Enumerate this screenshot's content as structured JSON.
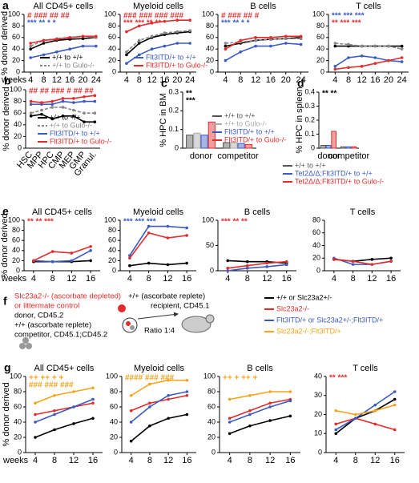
{
  "schematic": {
    "label": "f",
    "donor_line1": "Slc23a2-/- (ascorbate depleted)",
    "donor_line2": "or littermate control",
    "donor_line3": "donor, CD45.2",
    "competitor_line1": "+/+ (ascorbate replete)",
    "competitor_line2": "competitor, CD45.1;CD45.2",
    "recipient_line1": "+/+ (ascorbate replete)",
    "recipient_line2": "recipient, CD45.1",
    "ratio": "Ratio 1:4"
  },
  "chart_data": [
    {
      "type": "line",
      "label": "a",
      "title": "All CD45+ cells",
      "ylabel": "% donor derived",
      "xlabel": "weeks",
      "x": [
        4,
        8,
        12,
        16,
        20,
        24
      ],
      "xlim": [
        2,
        26
      ],
      "xticks": [
        4,
        8,
        12,
        16,
        20,
        24
      ],
      "ylim": [
        0,
        100
      ],
      "yticks": [
        0,
        20,
        40,
        60,
        80,
        100
      ],
      "legend": "lower right",
      "series": [
        {
          "name": "+/+ to +/+",
          "color": "#000000",
          "values": [
            40,
            50,
            55,
            57,
            58,
            60
          ]
        },
        {
          "name": "+/+ to Gulo-/-",
          "color": "#888888",
          "style": "dashed",
          "values": [
            45,
            55,
            58,
            60,
            62,
            60
          ]
        },
        {
          "color": "#3b5bc4",
          "values": [
            25,
            30,
            35,
            40,
            45,
            45
          ]
        },
        {
          "color": "#e32b2b",
          "values": [
            50,
            55,
            57,
            60,
            62,
            62
          ]
        }
      ],
      "annotations": [
        {
          "text": "# ### ## ##",
          "color": "#e32b2b"
        },
        {
          "text": "*** ** * *",
          "color": "#3b5bc4"
        }
      ]
    },
    {
      "type": "line",
      "title": "Myeloid cells",
      "x": [
        4,
        8,
        12,
        16,
        20,
        24
      ],
      "xlim": [
        2,
        26
      ],
      "xticks": [
        4,
        8,
        12,
        16,
        20,
        24
      ],
      "ylim": [
        0,
        100
      ],
      "yticks": [
        0,
        20,
        40,
        60,
        80,
        100
      ],
      "legend": "lower right",
      "series": [
        {
          "color": "#000000",
          "values": [
            30,
            50,
            60,
            65,
            68,
            70
          ]
        },
        {
          "color": "#888888",
          "style": "dashed",
          "values": [
            35,
            55,
            62,
            68,
            70,
            72
          ]
        },
        {
          "name": "Flt3ITD/+ to +/+",
          "color": "#3b5bc4",
          "values": [
            15,
            30,
            40,
            45,
            50,
            50
          ]
        },
        {
          "name": "Flt3ITD/+ to Gulo-/-",
          "color": "#e32b2b",
          "values": [
            70,
            80,
            85,
            88,
            90,
            90
          ]
        }
      ],
      "annotations": [
        {
          "text": "### ### ### ###",
          "color": "#e32b2b"
        },
        {
          "text": "*** *** ** **",
          "color": "#e32b2b"
        }
      ]
    },
    {
      "type": "line",
      "title": "B cells",
      "x": [
        4,
        8,
        12,
        16,
        20,
        24
      ],
      "xlim": [
        2,
        26
      ],
      "xticks": [
        4,
        8,
        12,
        16,
        20,
        24
      ],
      "ylim": [
        0,
        100
      ],
      "yticks": [
        0,
        20,
        40,
        60,
        80,
        100
      ],
      "series": [
        {
          "color": "#000000",
          "values": [
            45,
            50,
            55,
            57,
            58,
            60
          ]
        },
        {
          "color": "#888888",
          "style": "dashed",
          "values": [
            50,
            52,
            55,
            57,
            58,
            58
          ]
        },
        {
          "color": "#3b5bc4",
          "values": [
            20,
            35,
            45,
            45,
            50,
            48
          ]
        },
        {
          "color": "#e32b2b",
          "values": [
            40,
            55,
            60,
            60,
            62,
            62
          ]
        }
      ],
      "annotations": [
        {
          "text": "# ### ## #",
          "color": "#e32b2b"
        },
        {
          "text": "*** ** * *",
          "color": "#3b5bc4"
        }
      ]
    },
    {
      "type": "line",
      "title": "T cells",
      "x": [
        4,
        8,
        12,
        16,
        20,
        24
      ],
      "xlim": [
        2,
        26
      ],
      "xticks": [
        4,
        8,
        12,
        16,
        20,
        24
      ],
      "ylim": [
        0,
        100
      ],
      "yticks": [
        0,
        20,
        40,
        60,
        80,
        100
      ],
      "series": [
        {
          "color": "#000000",
          "values": [
            45,
            45,
            45,
            45,
            45,
            45
          ]
        },
        {
          "color": "#888888",
          "style": "dashed",
          "values": [
            50,
            48,
            45,
            45,
            45,
            40
          ]
        },
        {
          "color": "#3b5bc4",
          "values": [
            10,
            25,
            28,
            25,
            20,
            18
          ]
        },
        {
          "color": "#e32b2b",
          "values": [
            5,
            8,
            10,
            15,
            20,
            25
          ]
        }
      ],
      "annotations": [
        {
          "text": "*** *** ***",
          "color": "#3b5bc4"
        },
        {
          "text": "** *** ***",
          "color": "#e32b2b"
        }
      ]
    },
    {
      "type": "line",
      "label": "b",
      "ylabel": "% donor derived",
      "categories": [
        "HSC",
        "MPP",
        "HPC",
        "CMP",
        "MEP",
        "GMP",
        "Granul."
      ],
      "ylim": [
        0,
        100
      ],
      "yticks": [
        0,
        20,
        40,
        60,
        80,
        100
      ],
      "legend": "lower right",
      "series": [
        {
          "name": "+/+ to +/+",
          "color": "#000000",
          "values": [
            55,
            58,
            50,
            55,
            55,
            45,
            45
          ]
        },
        {
          "name": "+/+ to Gulo-/-",
          "color": "#888888",
          "style": "dashed",
          "values": [
            60,
            65,
            70,
            70,
            65,
            60,
            60
          ]
        },
        {
          "name": "Flt3ITD/+ to +/+",
          "color": "#3b5bc4",
          "values": [
            75,
            75,
            75,
            80,
            78,
            80,
            80
          ]
        },
        {
          "name": "Flt3ITD/+ to Gulo-/-",
          "color": "#e32b2b",
          "values": [
            80,
            78,
            80,
            85,
            85,
            88,
            90
          ]
        }
      ],
      "annotations": [
        {
          "text": "## ## ### # ## ##",
          "color": "#e32b2b"
        }
      ]
    },
    {
      "type": "bar",
      "label": "c",
      "ylabel": "% HPC in BM",
      "categories": [
        "donor",
        "competitor"
      ],
      "ylim": [
        0,
        0.3
      ],
      "yticks": [
        0,
        0.1,
        0.2,
        0.3
      ],
      "legend": "right",
      "series": [
        {
          "name": "+/+ to +/+",
          "color": "#555555",
          "values": [
            0.07,
            0.03
          ]
        },
        {
          "name": "+/+ to Gulo-/-",
          "color": "#aaaaaa",
          "values": [
            0.08,
            0.03
          ]
        },
        {
          "name": "Flt3ITD/+ to +/+",
          "color": "#3b5bc4",
          "values": [
            0.07,
            0.025
          ]
        },
        {
          "name": "Flt3ITD/+ to Gulo-/-",
          "color": "#e32b2b",
          "values": [
            0.14,
            0.02
          ]
        }
      ],
      "annotations": [
        {
          "text": "**",
          "color": "#000000"
        },
        {
          "text": "***",
          "color": "#000000"
        }
      ]
    },
    {
      "type": "bar",
      "label": "d",
      "ylabel": "% HPC in spleen",
      "categories": [
        "donor",
        "competitor"
      ],
      "ylim": [
        0,
        0.4
      ],
      "yticks": [
        0,
        0.1,
        0.2,
        0.3,
        0.4
      ],
      "legend": "below",
      "series": [
        {
          "name": "+/+ to +/+",
          "color": "#555555",
          "values": [
            0.02,
            0.01
          ]
        },
        {
          "name": "Tet2Δ/Δ;Flt3ITD/+ to +/+",
          "color": "#3b5bc4",
          "values": [
            0.02,
            0.01
          ]
        },
        {
          "name": "Tet2Δ/Δ;Flt3ITD/+ to Gulo-/-",
          "color": "#e32b2b",
          "values": [
            0.12,
            0.01
          ]
        }
      ],
      "annotations": [
        {
          "text": "** **",
          "color": "#000000"
        }
      ]
    },
    {
      "type": "line",
      "label": "e",
      "title": "All CD45+ cells",
      "ylabel": "% donor derived",
      "xlabel": "weeks",
      "x": [
        4,
        8,
        12,
        16
      ],
      "xlim": [
        2,
        18
      ],
      "xticks": [
        4,
        8,
        12,
        16
      ],
      "ylim": [
        0,
        100
      ],
      "yticks": [
        0,
        20,
        40,
        60,
        80,
        100
      ],
      "series": [
        {
          "color": "#000000",
          "values": [
            18,
            18,
            18,
            20
          ]
        },
        {
          "color": "#3b5bc4",
          "values": [
            20,
            18,
            20,
            40
          ]
        },
        {
          "color": "#e32b2b",
          "values": [
            20,
            38,
            35,
            48
          ]
        }
      ],
      "annotations": [
        {
          "text": "** ** ***",
          "color": "#e32b2b"
        }
      ]
    },
    {
      "type": "line",
      "title": "Myeloid cells",
      "x": [
        4,
        8,
        12,
        16
      ],
      "xlim": [
        2,
        18
      ],
      "xticks": [
        4,
        8,
        12,
        16
      ],
      "ylim": [
        0,
        100
      ],
      "yticks": [
        0,
        20,
        40,
        60,
        80,
        100
      ],
      "series": [
        {
          "color": "#000000",
          "values": [
            10,
            15,
            12,
            15
          ]
        },
        {
          "color": "#3b5bc4",
          "values": [
            30,
            88,
            88,
            85
          ]
        },
        {
          "color": "#e32b2b",
          "values": [
            25,
            75,
            65,
            70
          ]
        }
      ],
      "annotations": [
        {
          "text": "*** *** ***",
          "color": "#3b5bc4"
        }
      ]
    },
    {
      "type": "line",
      "title": "B cells",
      "x": [
        4,
        8,
        12,
        16
      ],
      "xlim": [
        2,
        18
      ],
      "xticks": [
        4,
        8,
        12,
        16
      ],
      "ylim": [
        0,
        100
      ],
      "yticks": [
        0,
        50,
        100
      ],
      "series": [
        {
          "color": "#000000",
          "values": [
            20,
            18,
            18,
            15
          ]
        },
        {
          "color": "#3b5bc4",
          "values": [
            0,
            5,
            8,
            12
          ]
        },
        {
          "color": "#e32b2b",
          "values": [
            5,
            10,
            15,
            18
          ]
        }
      ],
      "annotations": [
        {
          "text": "*** ** **",
          "color": "#e32b2b"
        }
      ]
    },
    {
      "type": "line",
      "title": "T cells",
      "x": [
        4,
        8,
        12,
        16
      ],
      "xlim": [
        2,
        18
      ],
      "xticks": [
        4,
        8,
        12,
        16
      ],
      "ylim": [
        0,
        80
      ],
      "yticks": [
        0,
        20,
        40,
        60,
        80
      ],
      "series": [
        {
          "color": "#000000",
          "values": [
            18,
            15,
            18,
            20
          ]
        },
        {
          "color": "#3b5bc4",
          "values": [
            20,
            10,
            10,
            15
          ]
        },
        {
          "color": "#e32b2b",
          "values": [
            18,
            15,
            10,
            15
          ]
        }
      ]
    },
    {
      "type": "line",
      "label": "g",
      "title": "All CD45+ cells",
      "ylabel": "% donor derived",
      "xlabel": "weeks",
      "x": [
        4,
        8,
        12,
        16
      ],
      "xlim": [
        2,
        18
      ],
      "xticks": [
        4,
        8,
        12,
        16
      ],
      "ylim": [
        0,
        100
      ],
      "yticks": [
        0,
        20,
        40,
        60,
        80,
        100
      ],
      "legend": "page right",
      "series": [
        {
          "name": "+/+ or Slc23a2+/-",
          "color": "#000000",
          "values": [
            20,
            30,
            38,
            45
          ]
        },
        {
          "name": "Slc23a2-/-",
          "color": "#e32b2b",
          "values": [
            50,
            55,
            60,
            65
          ]
        },
        {
          "name": "Flt3ITD/+ or Slc23a2+/-;Flt3ITD/+",
          "color": "#3b5bc4",
          "values": [
            40,
            50,
            60,
            70
          ]
        },
        {
          "name": "Slc23a2-/-;Flt3ITD/+",
          "color": "#f5a31a",
          "values": [
            65,
            75,
            80,
            85
          ]
        }
      ],
      "annotations": [
        {
          "text": "++ ++ + +",
          "color": "#f5a31a"
        },
        {
          "text": "### ### ###",
          "color": "#f5a31a"
        }
      ]
    },
    {
      "type": "line",
      "title": "Myeloid cells",
      "x": [
        4,
        8,
        12,
        16
      ],
      "xlim": [
        2,
        18
      ],
      "xticks": [
        4,
        8,
        12,
        16
      ],
      "ylim": [
        0,
        100
      ],
      "yticks": [
        0,
        20,
        40,
        60,
        80,
        100
      ],
      "series": [
        {
          "color": "#000000",
          "values": [
            15,
            35,
            45,
            50
          ]
        },
        {
          "color": "#e32b2b",
          "values": [
            55,
            65,
            70,
            75
          ]
        },
        {
          "color": "#3b5bc4",
          "values": [
            40,
            60,
            75,
            80
          ]
        },
        {
          "color": "#f5a31a",
          "values": [
            75,
            90,
            95,
            95
          ]
        }
      ],
      "annotations": [
        {
          "text": "#### ### ###",
          "color": "#f5a31a"
        }
      ]
    },
    {
      "type": "line",
      "title": "B cells",
      "x": [
        4,
        8,
        12,
        16
      ],
      "xlim": [
        2,
        18
      ],
      "xticks": [
        4,
        8,
        12,
        16
      ],
      "ylim": [
        0,
        100
      ],
      "yticks": [
        0,
        20,
        40,
        60,
        80,
        100
      ],
      "series": [
        {
          "color": "#000000",
          "values": [
            25,
            35,
            42,
            48
          ]
        },
        {
          "color": "#e32b2b",
          "values": [
            45,
            55,
            65,
            70
          ]
        },
        {
          "color": "#3b5bc4",
          "values": [
            40,
            50,
            60,
            68
          ]
        },
        {
          "color": "#f5a31a",
          "values": [
            70,
            75,
            80,
            80
          ]
        }
      ],
      "annotations": [
        {
          "text": "++ + ++ +",
          "color": "#f5a31a"
        }
      ]
    },
    {
      "type": "line",
      "title": "T cells",
      "x": [
        4,
        8,
        12,
        16
      ],
      "xlim": [
        2,
        18
      ],
      "xticks": [
        4,
        8,
        12,
        16
      ],
      "ylim": [
        0,
        40
      ],
      "yticks": [
        0,
        10,
        20,
        30,
        40
      ],
      "series": [
        {
          "color": "#000000",
          "values": [
            10,
            18,
            22,
            28
          ]
        },
        {
          "color": "#e32b2b",
          "values": [
            15,
            18,
            15,
            12
          ]
        },
        {
          "color": "#3b5bc4",
          "values": [
            12,
            18,
            25,
            32
          ]
        },
        {
          "color": "#f5a31a",
          "values": [
            22,
            20,
            22,
            25
          ]
        }
      ],
      "annotations": [
        {
          "text": "** ***",
          "color": "#e32b2b"
        }
      ]
    }
  ]
}
